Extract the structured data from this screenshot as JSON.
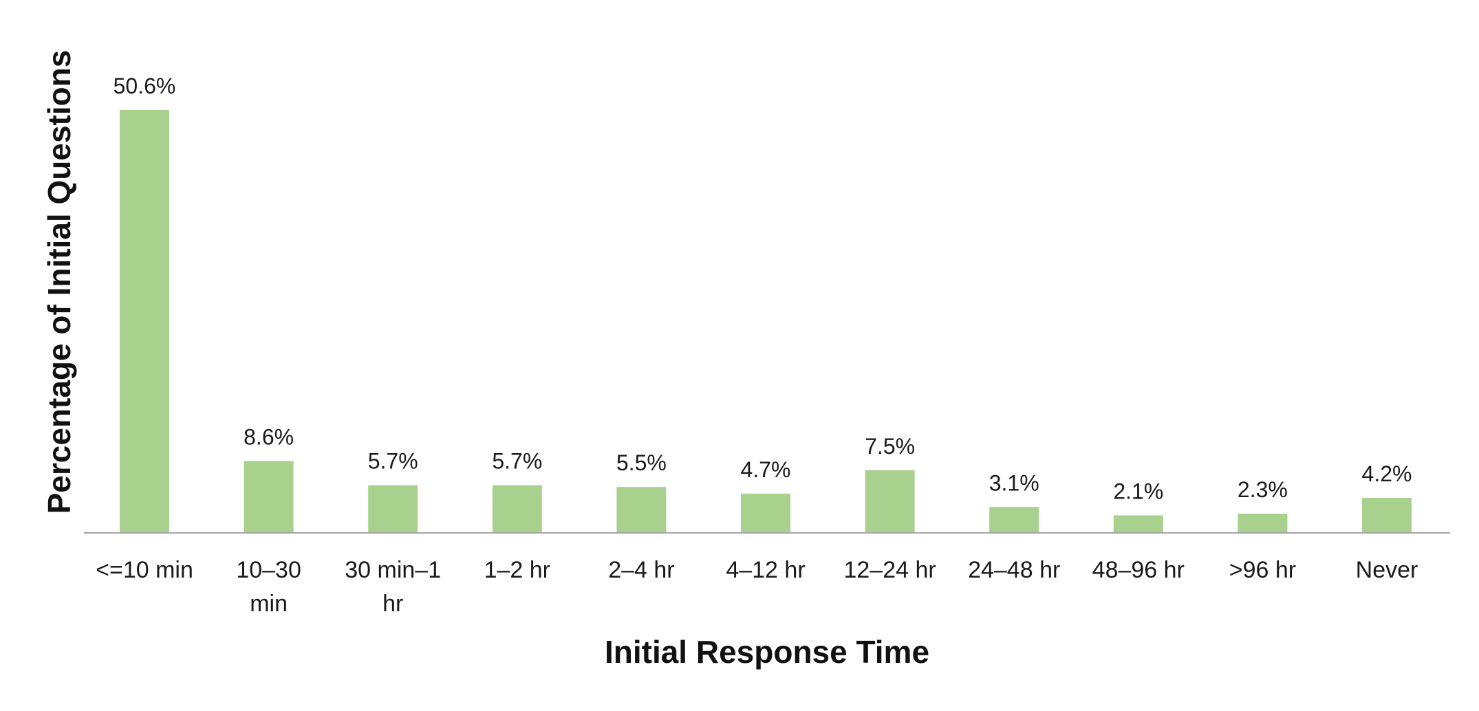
{
  "chart_data": {
    "type": "bar",
    "title": "",
    "xlabel": "Initial Response Time",
    "ylabel": "Percentage of Initial Questions",
    "categories": [
      "<=10 min",
      "10–30 min",
      "30 min–1 hr",
      "1–2 hr",
      "2–4 hr",
      "4–12 hr",
      "12–24 hr",
      "24–48 hr",
      "48–96 hr",
      ">96 hr",
      "Never"
    ],
    "category_lines": [
      [
        "<=10 min"
      ],
      [
        "10–30",
        "min"
      ],
      [
        "30 min–1",
        "hr"
      ],
      [
        "1–2 hr"
      ],
      [
        "2–4 hr"
      ],
      [
        "4–12 hr"
      ],
      [
        "12–24 hr"
      ],
      [
        "24–48 hr"
      ],
      [
        "48–96 hr"
      ],
      [
        ">96 hr"
      ],
      [
        "Never"
      ]
    ],
    "values": [
      50.6,
      8.6,
      5.7,
      5.7,
      5.5,
      4.7,
      7.5,
      3.1,
      2.1,
      2.3,
      4.2
    ],
    "data_labels": [
      "50.6%",
      "8.6%",
      "5.7%",
      "5.7%",
      "5.5%",
      "4.7%",
      "7.5%",
      "3.1%",
      "2.1%",
      "2.3%",
      "4.2%"
    ],
    "ylim": [
      0,
      50.6
    ],
    "grid": false,
    "legend": "none",
    "bar_color": "#a9d18e",
    "axis_color": "#a6a6a6"
  }
}
